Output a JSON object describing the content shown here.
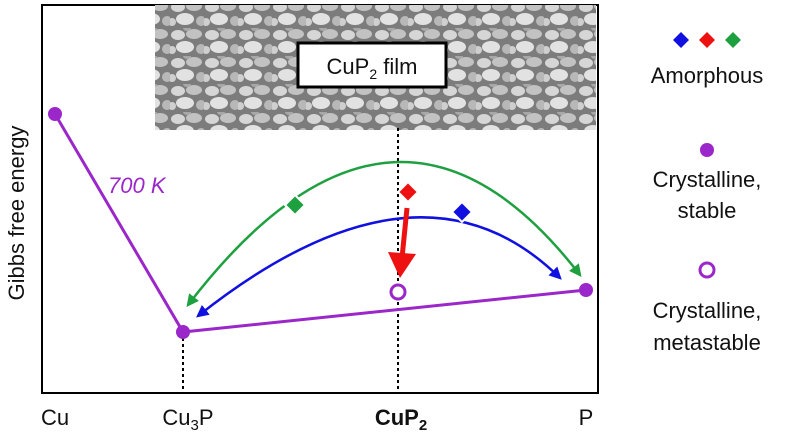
{
  "diagram": {
    "y_axis_label": "Gibbs free energy",
    "temperature_label": "700 K",
    "film_label": {
      "main": "CuP",
      "sub": "2",
      "tail": " film"
    },
    "x_ticks": [
      {
        "main": "Cu",
        "sub": "",
        "tail": ""
      },
      {
        "main": "Cu",
        "sub": "3",
        "tail": "P"
      },
      {
        "main": "CuP",
        "sub": "2",
        "tail": ""
      },
      {
        "main": "P",
        "sub": "",
        "tail": ""
      }
    ]
  },
  "legend": {
    "amorphous": {
      "label": "Amorphous",
      "colors": [
        "#1010e0",
        "#ee1111",
        "#1fa040"
      ]
    },
    "crystalline_stable": {
      "line1": "Crystalline,",
      "line2": "stable",
      "color": "#9b26c9"
    },
    "crystalline_metastable": {
      "line1": "Crystalline,",
      "line2": "metastable",
      "color": "#9b26c9"
    }
  },
  "colors": {
    "hull": "#9b26c9",
    "blue_path": "#1010e0",
    "green_path": "#1fa040",
    "red_arrow": "#ee1111"
  }
}
